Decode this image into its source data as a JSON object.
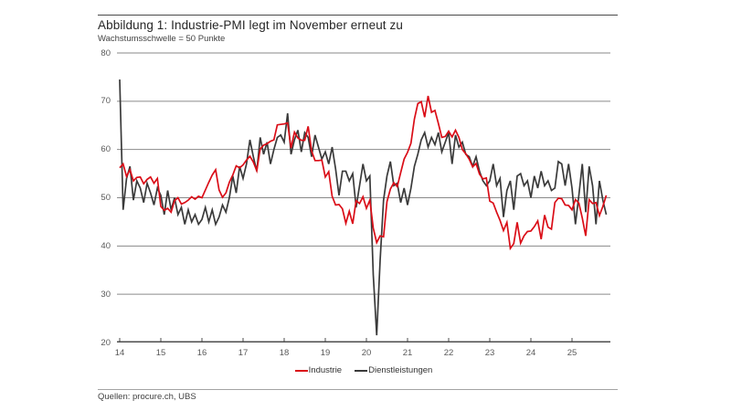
{
  "page": {
    "title": "Abbildung 1: Industrie-PMI legt im November erneut zu",
    "subtitle": "Wachstumsschwelle = 50 Punkte",
    "source": "Quellen: procure.ch, UBS"
  },
  "legend": {
    "industrie": "Industrie",
    "dienstleistungen": "Dienstleistungen"
  },
  "colors": {
    "industrie": "#da0d17",
    "dienstleistungen": "#3a3a3a",
    "grid": "#8a8a8a",
    "axis": "#4d4d4d"
  },
  "chart_data": {
    "type": "line",
    "title": "Abbildung 1: Industrie-PMI legt im November erneut zu",
    "subtitle": "Wachstumsschwelle = 50 Punkte",
    "source": "Quellen: procure.ch, UBS",
    "frequency": "monthly",
    "x_start": "2014-01",
    "x_end": "2025-11",
    "x_tick_labels": [
      "14",
      "15",
      "16",
      "17",
      "18",
      "19",
      "20",
      "21",
      "22",
      "23",
      "24",
      "25"
    ],
    "y_ticks": [
      20,
      30,
      40,
      50,
      60,
      70,
      80
    ],
    "ylim": [
      20,
      80
    ],
    "growth_threshold": 50,
    "grid": "horizontal",
    "legend_position": "bottom-center",
    "series": [
      {
        "name": "Dienstleistungen",
        "color": "#3a3a3a",
        "values": [
          74.5,
          47.5,
          54.0,
          56.5,
          49.5,
          53.5,
          52.0,
          49.0,
          53.0,
          51.0,
          48.5,
          52.0,
          50.5,
          46.5,
          51.5,
          47.5,
          50.0,
          46.5,
          48.0,
          44.5,
          47.5,
          45.0,
          46.5,
          44.5,
          45.5,
          48.0,
          45.0,
          47.5,
          44.5,
          46.0,
          48.5,
          47.0,
          50.0,
          54.5,
          51.0,
          56.5,
          54.0,
          57.0,
          62.0,
          58.5,
          55.5,
          62.5,
          59.0,
          61.5,
          57.0,
          60.0,
          62.5,
          63.0,
          61.5,
          67.5,
          59.0,
          62.0,
          64.0,
          59.5,
          63.5,
          62.5,
          58.5,
          63.0,
          60.5,
          58.0,
          59.5,
          57.0,
          60.5,
          56.0,
          50.5,
          55.5,
          55.5,
          53.5,
          55.0,
          48.0,
          52.5,
          57.0,
          53.5,
          54.5,
          34.0,
          21.5,
          37.0,
          49.5,
          54.5,
          57.5,
          52.5,
          53.0,
          49.0,
          52.0,
          48.5,
          52.0,
          56.5,
          59.0,
          62.0,
          63.5,
          60.5,
          62.5,
          61.0,
          63.5,
          59.5,
          61.5,
          63.5,
          57.0,
          63.0,
          60.5,
          61.5,
          59.0,
          58.5,
          56.5,
          58.5,
          55.5,
          53.5,
          52.5,
          53.5,
          57.0,
          52.5,
          54.0,
          46.0,
          51.5,
          53.5,
          47.5,
          54.5,
          55.0,
          52.5,
          53.5,
          50.0,
          54.5,
          52.0,
          55.5,
          52.5,
          53.5,
          51.5,
          52.0,
          57.5,
          57.0,
          52.5,
          57.0,
          52.0,
          44.5,
          50.5,
          57.0,
          47.0,
          56.5,
          52.5,
          44.5,
          53.5,
          49.5,
          46.5
        ]
      },
      {
        "name": "Industrie",
        "color": "#da0d17",
        "values": [
          56.2,
          57.0,
          54.4,
          55.8,
          53.5,
          54.2,
          54.3,
          52.9,
          53.8,
          54.3,
          53.0,
          54.0,
          48.2,
          47.4,
          47.8,
          47.0,
          49.4,
          50.0,
          48.7,
          49.0,
          49.5,
          50.2,
          49.7,
          50.3,
          50.0,
          51.6,
          53.2,
          54.7,
          55.8,
          51.6,
          50.1,
          51.0,
          53.2,
          54.7,
          56.6,
          56.2,
          56.8,
          57.8,
          58.6,
          57.4,
          55.6,
          60.1,
          60.9,
          61.2,
          61.7,
          62.0,
          65.1,
          65.2,
          65.3,
          65.5,
          60.3,
          63.6,
          62.4,
          61.9,
          61.9,
          64.8,
          59.7,
          57.7,
          57.7,
          57.8,
          54.3,
          55.4,
          50.3,
          48.5,
          48.6,
          47.7,
          44.7,
          47.2,
          44.6,
          49.4,
          48.8,
          50.2,
          47.8,
          49.5,
          43.7,
          40.7,
          42.1,
          41.9,
          49.2,
          51.8,
          53.1,
          52.3,
          55.2,
          58.0,
          59.4,
          61.3,
          66.3,
          69.5,
          69.9,
          66.7,
          71.1,
          67.7,
          68.1,
          65.4,
          62.5,
          62.7,
          63.8,
          62.6,
          64.0,
          62.5,
          60.0,
          59.1,
          58.0,
          56.4,
          57.1,
          54.9,
          53.9,
          54.1,
          49.3,
          48.9,
          47.0,
          45.3,
          43.2,
          44.9,
          39.5,
          40.5,
          44.9,
          40.6,
          42.1,
          43.0,
          43.1,
          44.0,
          45.2,
          41.4,
          46.4,
          43.9,
          43.5,
          49.0,
          49.9,
          49.8,
          48.5,
          48.4,
          47.5,
          49.6,
          48.9,
          45.8,
          42.1,
          49.6,
          48.8,
          49.0,
          46.3,
          48.2,
          50.5
        ]
      }
    ]
  }
}
